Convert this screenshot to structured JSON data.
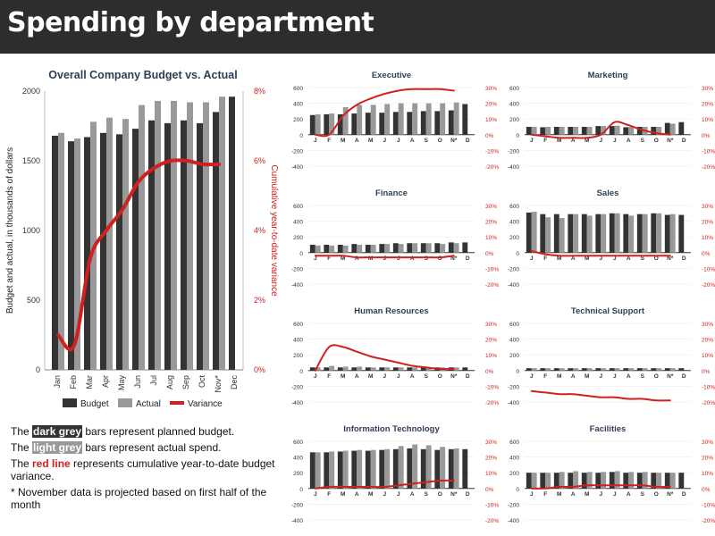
{
  "header": {
    "title": "Spending by department"
  },
  "colors": {
    "budget": "#333333",
    "actual": "#999999",
    "variance": "#d0201f",
    "title": "#2f3e57"
  },
  "notes": {
    "line1_pre": "The ",
    "line1_hl": "dark grey",
    "line1_post": " bars represent planned budget.",
    "line2_pre": "The ",
    "line2_hl": "light grey",
    "line2_post": " bars represent actual spend.",
    "line3_pre": "The ",
    "line3_hl": "red line",
    "line3_post": " represents cumulative year-to-date budget variance.",
    "line4": "* November data is projected based on first half of the month"
  },
  "chart_data": [
    {
      "type": "bar",
      "title": "Overall Company Budget vs. Actual",
      "ylabel": "Budget and actual, in thousands of dollars",
      "y2label": "Cumulative year-to-date variance",
      "categories": [
        "Jan",
        "Feb",
        "Mar",
        "Apr",
        "May",
        "Jun",
        "Jul",
        "Aug",
        "Sep",
        "Oct",
        "Nov*",
        "Dec"
      ],
      "ylim": [
        0,
        2000
      ],
      "yticks": [
        0,
        500,
        1000,
        1500,
        2000
      ],
      "y2lim": [
        0,
        8
      ],
      "y2ticks": [
        "0%",
        "2%",
        "4%",
        "6%",
        "8%"
      ],
      "legend": [
        "Budget",
        "Actual",
        "Variance"
      ],
      "series": [
        {
          "name": "Budget",
          "values": [
            1680,
            1640,
            1670,
            1700,
            1690,
            1730,
            1790,
            1770,
            1790,
            1770,
            1850,
            1960
          ]
        },
        {
          "name": "Actual",
          "values": [
            1700,
            1660,
            1780,
            1810,
            1800,
            1900,
            1930,
            1930,
            1920,
            1920,
            1960,
            null
          ]
        },
        {
          "name": "Variance",
          "values": [
            1.0,
            0.7,
            3.2,
            4.0,
            4.6,
            5.4,
            5.8,
            6.0,
            6.0,
            5.9,
            5.9,
            null
          ]
        }
      ]
    },
    {
      "type": "bar",
      "title": "Executive",
      "categories": [
        "J",
        "F",
        "M",
        "A",
        "M",
        "J",
        "J",
        "A",
        "S",
        "O",
        "N*",
        "D"
      ],
      "yticks": [
        "600",
        "400",
        "200",
        "0",
        "-200",
        "-400"
      ],
      "y2ticks": [
        "30%",
        "20%",
        "10%",
        "0%",
        "-10%",
        "-20%"
      ],
      "ylim": [
        -400,
        600
      ],
      "y2lim": [
        -20,
        30
      ],
      "series": [
        {
          "name": "Budget",
          "values": [
            250,
            260,
            260,
            270,
            280,
            280,
            290,
            290,
            300,
            300,
            310,
            390
          ]
        },
        {
          "name": "Actual",
          "values": [
            260,
            270,
            350,
            380,
            380,
            390,
            400,
            400,
            400,
            400,
            410,
            null
          ]
        },
        {
          "name": "Variance",
          "values": [
            0,
            0,
            12,
            19,
            23,
            26,
            28,
            29,
            29,
            29,
            28,
            null
          ]
        }
      ]
    },
    {
      "type": "bar",
      "title": "Marketing",
      "categories": [
        "J",
        "F",
        "M",
        "A",
        "M",
        "J",
        "J",
        "A",
        "S",
        "O",
        "N*",
        "D"
      ],
      "yticks": [
        "600",
        "400",
        "200",
        "0",
        "-200",
        "-400"
      ],
      "y2ticks": [
        "30%",
        "20%",
        "10%",
        "0%",
        "-10%",
        "-20%"
      ],
      "ylim": [
        -400,
        600
      ],
      "y2lim": [
        -20,
        30
      ],
      "series": [
        {
          "name": "Budget",
          "values": [
            100,
            95,
            100,
            100,
            100,
            110,
            110,
            95,
            100,
            100,
            150,
            160
          ]
        },
        {
          "name": "Actual",
          "values": [
            100,
            100,
            100,
            100,
            100,
            110,
            115,
            100,
            100,
            100,
            140,
            null
          ]
        },
        {
          "name": "Variance",
          "values": [
            0,
            -1,
            -2,
            -2,
            -2,
            0,
            8,
            6,
            3,
            1,
            0,
            null
          ]
        }
      ]
    },
    {
      "type": "bar",
      "title": "Finance",
      "categories": [
        "J",
        "F",
        "M",
        "A",
        "M",
        "J",
        "J",
        "A",
        "S",
        "O",
        "N*",
        "D"
      ],
      "yticks": [
        "600",
        "400",
        "200",
        "0",
        "-200",
        "-400"
      ],
      "y2ticks": [
        "30%",
        "20%",
        "10%",
        "0%",
        "-10%",
        "-20%"
      ],
      "ylim": [
        -400,
        600
      ],
      "y2lim": [
        -20,
        30
      ],
      "series": [
        {
          "name": "Budget",
          "values": [
            100,
            100,
            100,
            110,
            100,
            110,
            120,
            120,
            120,
            120,
            130,
            130
          ]
        },
        {
          "name": "Actual",
          "values": [
            90,
            90,
            90,
            100,
            100,
            110,
            110,
            120,
            120,
            110,
            120,
            null
          ]
        },
        {
          "name": "Variance",
          "values": [
            -2,
            -2,
            -2,
            -3,
            -3,
            -3,
            -3,
            -3,
            -3,
            -3,
            -2,
            null
          ]
        }
      ]
    },
    {
      "type": "bar",
      "title": "Sales",
      "categories": [
        "J",
        "F",
        "M",
        "A",
        "M",
        "J",
        "J",
        "A",
        "S",
        "O",
        "N*",
        "D"
      ],
      "yticks": [
        "600",
        "400",
        "200",
        "0",
        "-200",
        "-400"
      ],
      "y2ticks": [
        "30%",
        "20%",
        "10%",
        "0%",
        "-10%",
        "-20%"
      ],
      "ylim": [
        -400,
        600
      ],
      "y2lim": [
        -20,
        30
      ],
      "series": [
        {
          "name": "Budget",
          "values": [
            510,
            490,
            490,
            490,
            490,
            490,
            500,
            490,
            490,
            500,
            480,
            480
          ]
        },
        {
          "name": "Actual",
          "values": [
            520,
            450,
            440,
            490,
            470,
            490,
            500,
            470,
            490,
            500,
            490,
            null
          ]
        },
        {
          "name": "Variance",
          "values": [
            1,
            -1,
            -2,
            -2,
            -2,
            -2,
            -2,
            -2,
            -2,
            -2,
            -2,
            null
          ]
        }
      ]
    },
    {
      "type": "bar",
      "title": "Human Resources",
      "categories": [
        "J",
        "F",
        "M",
        "A",
        "M",
        "J",
        "J",
        "A",
        "S",
        "O",
        "N*",
        "D"
      ],
      "yticks": [
        "600",
        "400",
        "200",
        "0",
        "-200",
        "-400"
      ],
      "y2ticks": [
        "30%",
        "20%",
        "10%",
        "0%",
        "-10%",
        "-20%"
      ],
      "ylim": [
        -400,
        600
      ],
      "y2lim": [
        -20,
        30
      ],
      "series": [
        {
          "name": "Budget",
          "values": [
            40,
            40,
            40,
            40,
            40,
            40,
            40,
            40,
            40,
            40,
            40,
            40
          ]
        },
        {
          "name": "Actual",
          "values": [
            40,
            60,
            50,
            50,
            40,
            40,
            40,
            40,
            40,
            40,
            40,
            null
          ]
        },
        {
          "name": "Variance",
          "values": [
            0,
            15,
            15,
            12,
            9,
            7,
            5,
            3,
            2,
            1,
            1,
            null
          ]
        }
      ]
    },
    {
      "type": "bar",
      "title": "Technical Support",
      "categories": [
        "J",
        "F",
        "M",
        "A",
        "M",
        "J",
        "J",
        "A",
        "S",
        "O",
        "N*",
        "D"
      ],
      "yticks": [
        "600",
        "400",
        "200",
        "0",
        "-200",
        "-400"
      ],
      "y2ticks": [
        "30%",
        "20%",
        "10%",
        "0%",
        "-10%",
        "-20%"
      ],
      "ylim": [
        -400,
        600
      ],
      "y2lim": [
        -20,
        30
      ],
      "series": [
        {
          "name": "Budget",
          "values": [
            30,
            30,
            30,
            30,
            30,
            30,
            30,
            30,
            30,
            30,
            30,
            30
          ]
        },
        {
          "name": "Actual",
          "values": [
            30,
            30,
            30,
            30,
            30,
            30,
            30,
            30,
            30,
            30,
            30,
            null
          ]
        },
        {
          "name": "Variance",
          "values": [
            -13,
            -14,
            -15,
            -15,
            -16,
            -17,
            -17,
            -18,
            -18,
            -19,
            -19,
            null
          ]
        }
      ]
    },
    {
      "type": "bar",
      "title": "Information Technology",
      "categories": [
        "J",
        "F",
        "M",
        "A",
        "M",
        "J",
        "J",
        "A",
        "S",
        "O",
        "N*",
        "D"
      ],
      "yticks": [
        "600",
        "400",
        "200",
        "0",
        "-200",
        "-400"
      ],
      "y2ticks": [
        "30%",
        "20%",
        "10%",
        "0%",
        "-10%",
        "-20%"
      ],
      "ylim": [
        -400,
        600
      ],
      "y2lim": [
        -20,
        30
      ],
      "series": [
        {
          "name": "Budget",
          "values": [
            460,
            460,
            470,
            480,
            480,
            490,
            500,
            510,
            500,
            490,
            500,
            500
          ]
        },
        {
          "name": "Actual",
          "values": [
            460,
            470,
            480,
            490,
            490,
            500,
            540,
            560,
            550,
            530,
            510,
            null
          ]
        },
        {
          "name": "Variance",
          "values": [
            0,
            1,
            1,
            1,
            1,
            1,
            2,
            3,
            4,
            5,
            5,
            null
          ]
        }
      ]
    },
    {
      "type": "bar",
      "title": "Facilities",
      "categories": [
        "J",
        "F",
        "M",
        "A",
        "M",
        "J",
        "J",
        "A",
        "S",
        "O",
        "N*",
        "D"
      ],
      "yticks": [
        "600",
        "400",
        "200",
        "0",
        "-200",
        "-400"
      ],
      "y2ticks": [
        "30%",
        "20%",
        "10%",
        "0%",
        "-10%",
        "-20%"
      ],
      "ylim": [
        -400,
        600
      ],
      "y2lim": [
        -20,
        30
      ],
      "series": [
        {
          "name": "Budget",
          "values": [
            200,
            200,
            200,
            200,
            200,
            200,
            210,
            200,
            200,
            200,
            200,
            200
          ]
        },
        {
          "name": "Actual",
          "values": [
            200,
            200,
            210,
            220,
            210,
            210,
            220,
            210,
            210,
            200,
            200,
            null
          ]
        },
        {
          "name": "Variance",
          "values": [
            0,
            0,
            1,
            1,
            2,
            2,
            2,
            2,
            2,
            1,
            1,
            null
          ]
        }
      ]
    }
  ]
}
